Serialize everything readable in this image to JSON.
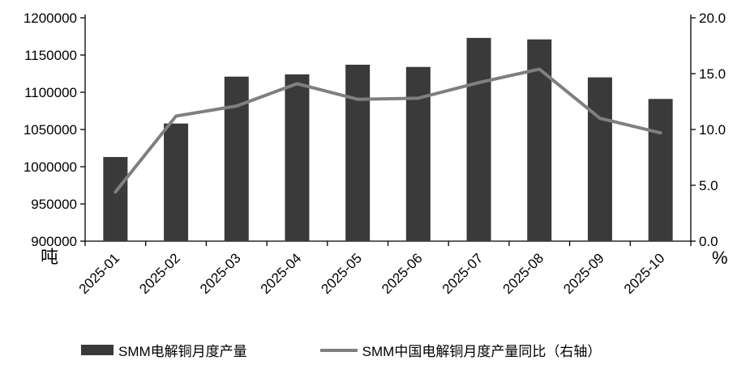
{
  "chart_data": {
    "type": "bar",
    "subtype": "bar+line combo, dual axis",
    "categories": [
      "2025-01",
      "2025-02",
      "2025-03",
      "2025-04",
      "2025-05",
      "2025-06",
      "2025-07",
      "2025-08",
      "2025-09",
      "2025-10"
    ],
    "series": [
      {
        "name": "SMM电解铜月度产量",
        "type": "bar",
        "axis": "left",
        "color": "#3a3a3a",
        "values": [
          1013000,
          1058000,
          1121000,
          1124000,
          1137000,
          1134000,
          1173000,
          1171000,
          1120000,
          1091000
        ]
      },
      {
        "name": "SMM中国电解铜月度产量同比（右轴）",
        "type": "line",
        "axis": "right",
        "color": "#7f7f7f",
        "values": [
          4.4,
          11.2,
          12.1,
          14.1,
          12.7,
          12.8,
          14.2,
          15.4,
          11.0,
          9.7
        ]
      }
    ],
    "title": "",
    "xlabel": "",
    "left_axis": {
      "unit": "吨",
      "min": 900000,
      "max": 1200000,
      "step": 50000,
      "tick_labels": [
        "900000",
        "950000",
        "1000000",
        "1050000",
        "1100000",
        "1150000",
        "1200000"
      ]
    },
    "right_axis": {
      "unit": "%",
      "min": 0,
      "max": 20,
      "step": 5,
      "tick_labels": [
        "0.0",
        "5.0",
        "10.0",
        "15.0",
        "20.0"
      ]
    },
    "grid": false,
    "legend_position": "bottom"
  }
}
